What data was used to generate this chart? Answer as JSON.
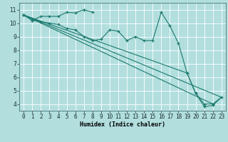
{
  "background_color": "#b2dede",
  "grid_color": "#ffffff",
  "line_color": "#1a7a6e",
  "xlabel": "Humidex (Indice chaleur)",
  "ylabel_ticks": [
    4,
    5,
    6,
    7,
    8,
    9,
    10,
    11
  ],
  "xlim": [
    -0.5,
    23.5
  ],
  "ylim": [
    3.5,
    11.5
  ],
  "xtick_labels": [
    "0",
    "1",
    "2",
    "3",
    "4",
    "5",
    "6",
    "7",
    "8",
    "9",
    "10",
    "11",
    "12",
    "13",
    "14",
    "15",
    "16",
    "17",
    "18",
    "19",
    "20",
    "21",
    "22",
    "23"
  ],
  "line1_x": [
    0,
    1,
    2,
    3,
    4,
    5,
    6,
    7,
    8
  ],
  "line1_y": [
    10.6,
    10.2,
    10.5,
    10.5,
    10.5,
    10.8,
    10.75,
    11.0,
    10.8
  ],
  "line2_x": [
    0,
    1,
    2,
    3,
    4,
    5,
    6,
    7,
    8,
    9,
    10,
    11,
    12,
    13,
    14,
    15,
    16,
    17,
    18,
    19,
    20,
    21,
    22
  ],
  "line2_y": [
    10.6,
    10.2,
    10.1,
    10.0,
    9.9,
    9.6,
    9.5,
    9.0,
    8.7,
    8.8,
    9.5,
    9.4,
    8.7,
    9.0,
    8.7,
    8.7,
    10.8,
    9.8,
    8.5,
    6.3,
    4.8,
    4.0,
    4.0
  ],
  "line3_x": [
    0,
    23
  ],
  "line3_y": [
    10.6,
    4.5
  ],
  "line4_x": [
    0,
    19,
    20,
    21,
    22,
    23
  ],
  "line4_y": [
    10.6,
    6.3,
    4.8,
    3.8,
    3.9,
    4.5
  ],
  "line5_x": [
    0,
    22,
    23
  ],
  "line5_y": [
    10.6,
    4.0,
    4.5
  ],
  "font_size_label": 6,
  "font_size_tick": 5.5
}
